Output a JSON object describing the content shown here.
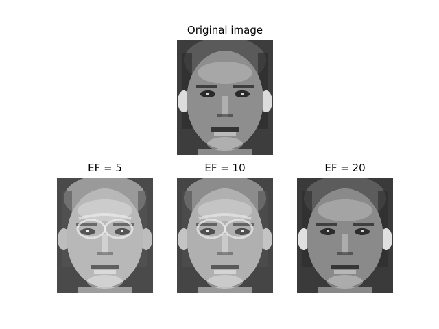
{
  "panels": {
    "original": {
      "title": "Original image"
    },
    "ef5": {
      "title": "EF = 5"
    },
    "ef10": {
      "title": "EF = 10"
    },
    "ef20": {
      "title": "EF = 20"
    }
  }
}
